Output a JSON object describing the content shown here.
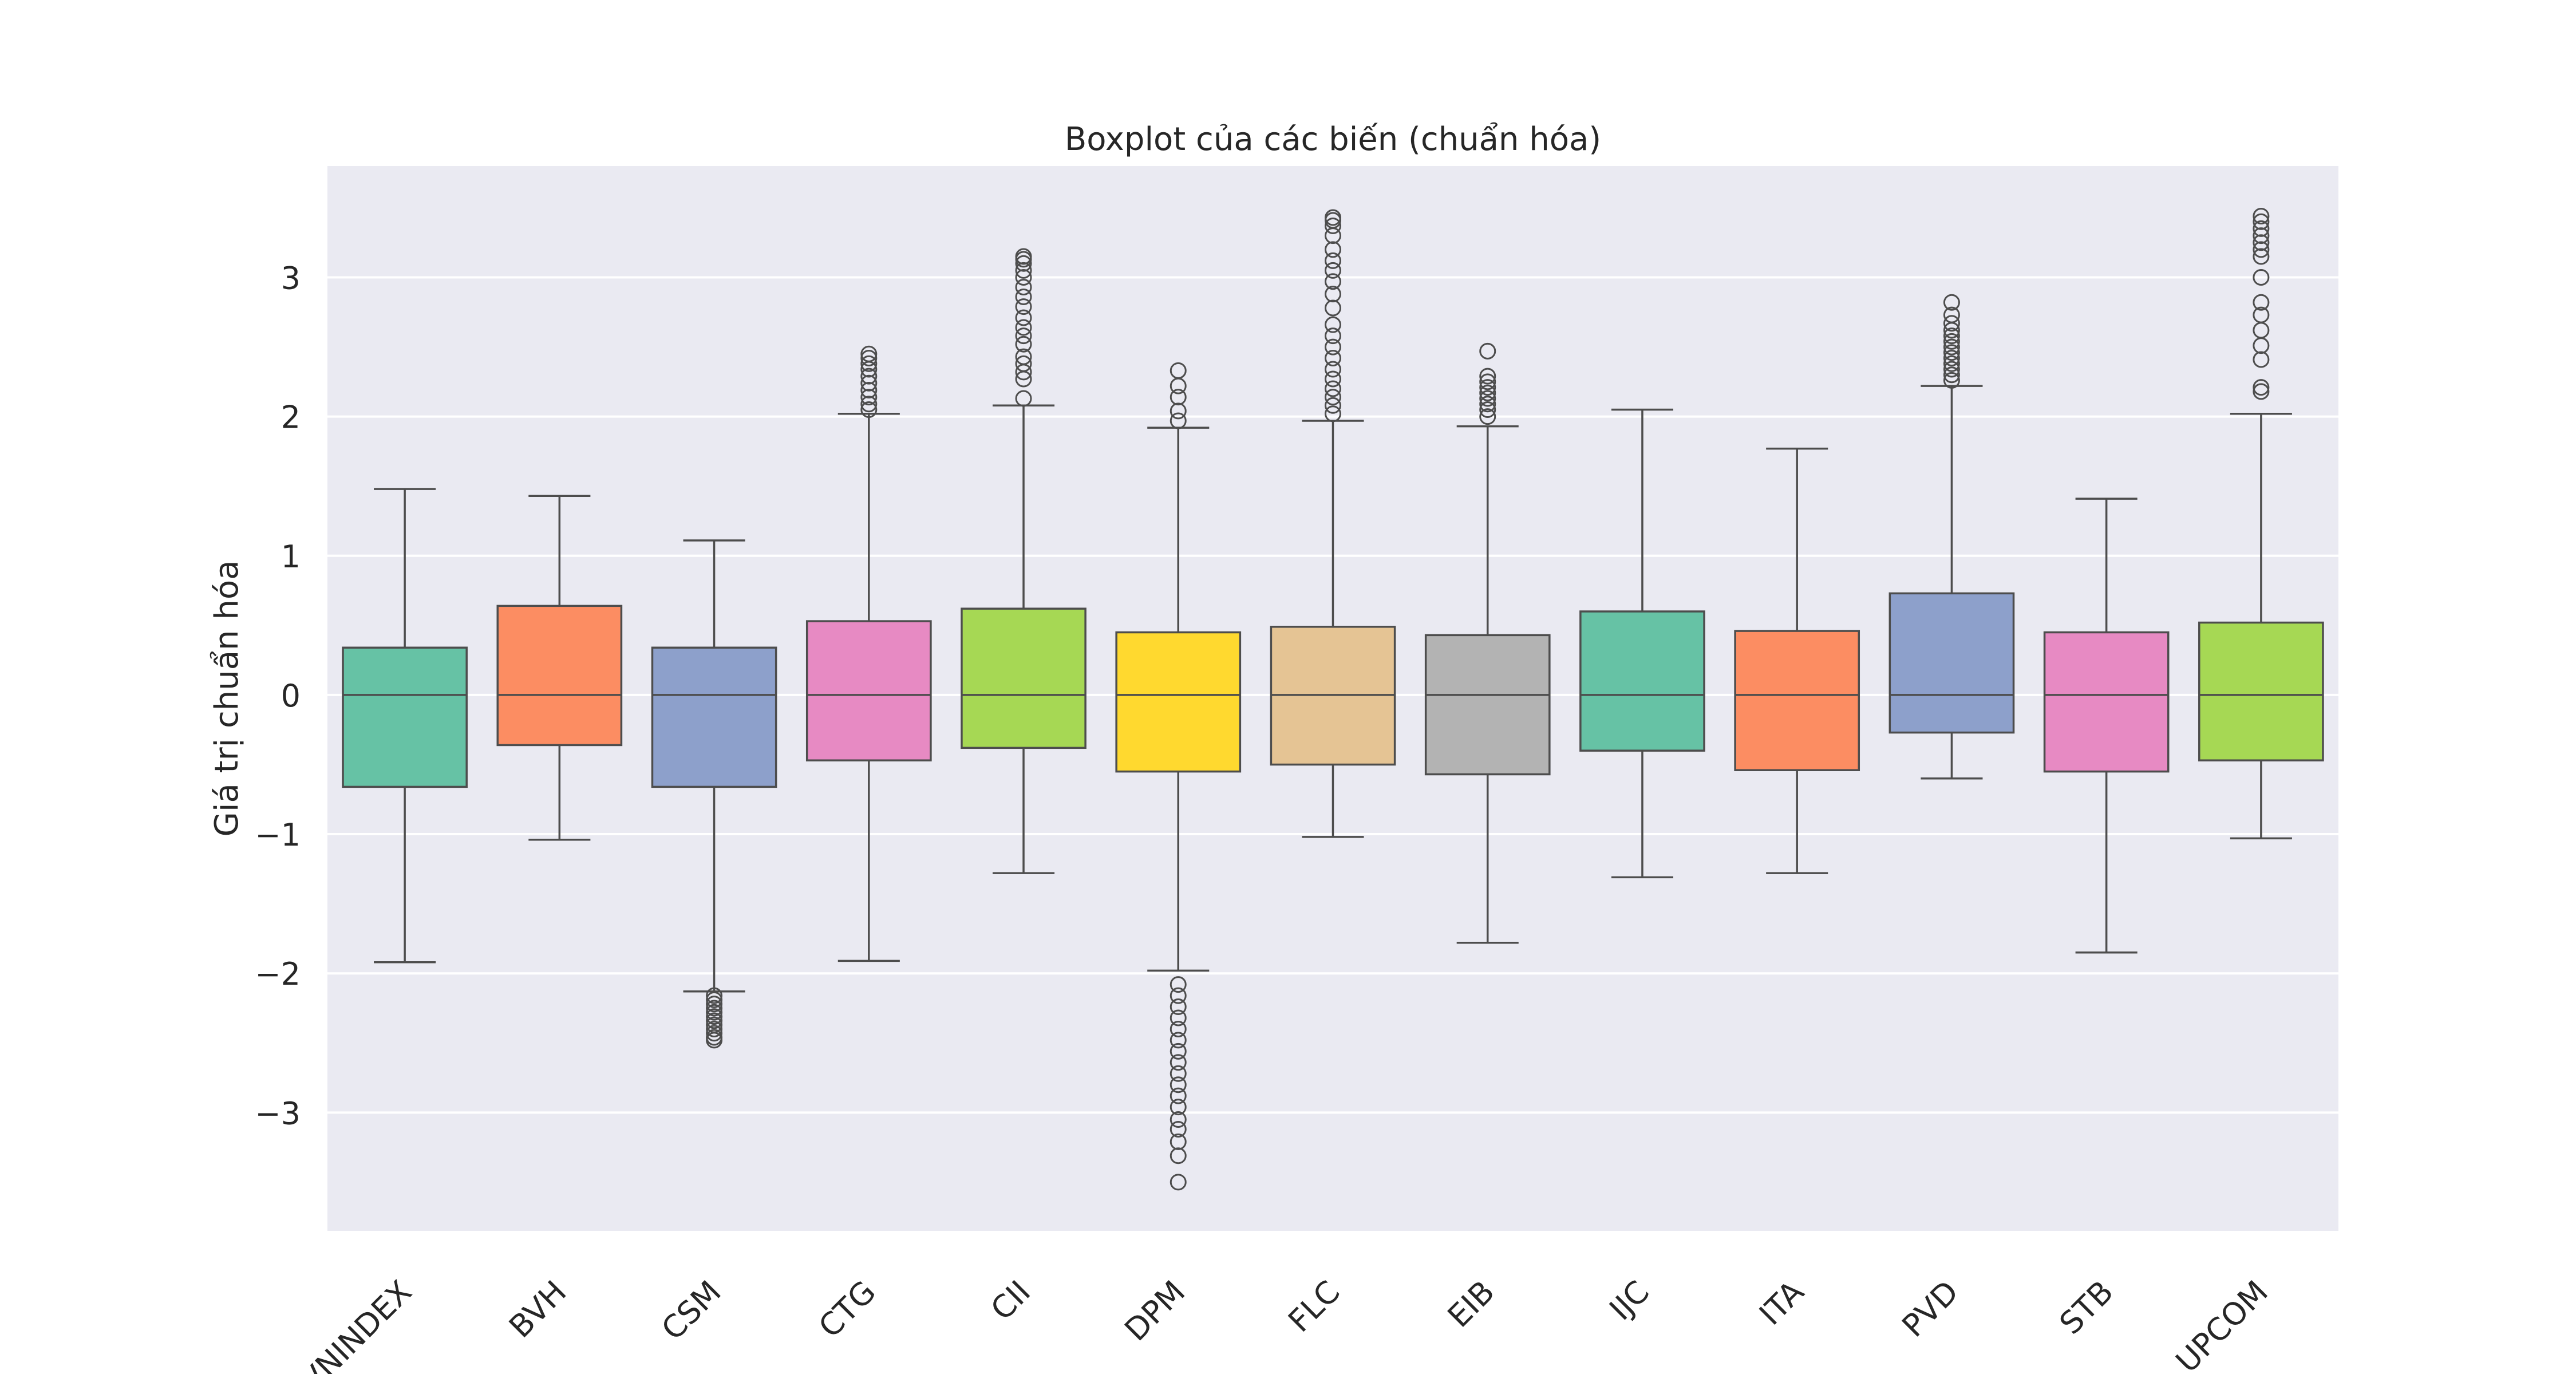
{
  "chart_data": {
    "type": "boxplot",
    "title": "Boxplot của các biến (chuẩn hóa)",
    "xlabel": "",
    "ylabel": "Giá trị chuẩn hóa",
    "ylim": [
      -3.85,
      3.8
    ],
    "yticks": [
      -3,
      -2,
      -1,
      0,
      1,
      2,
      3
    ],
    "ytick_labels": [
      "−3",
      "−2",
      "−1",
      "0",
      "1",
      "2",
      "3"
    ],
    "grid": true,
    "background": "#eaeaf2",
    "categories": [
      "VNINDEX",
      "BVH",
      "CSM",
      "CTG",
      "CII",
      "DPM",
      "FLC",
      "EIB",
      "IJC",
      "ITA",
      "PVD",
      "STB",
      "UPCOM"
    ],
    "boxes": [
      {
        "name": "VNINDEX",
        "color": "#66c2a5",
        "whisker_low": -1.92,
        "q1": -0.66,
        "median": 0.0,
        "q3": 0.34,
        "whisker_high": 1.48,
        "outliers": []
      },
      {
        "name": "BVH",
        "color": "#fc8d62",
        "whisker_low": -1.04,
        "q1": -0.36,
        "median": 0.0,
        "q3": 0.64,
        "whisker_high": 1.43,
        "outliers": []
      },
      {
        "name": "CSM",
        "color": "#8da0cb",
        "whisker_low": -2.13,
        "q1": -0.66,
        "median": 0.0,
        "q3": 0.34,
        "whisker_high": 1.11,
        "outliers": [
          -2.16,
          -2.19,
          -2.22,
          -2.25,
          -2.28,
          -2.31,
          -2.34,
          -2.37,
          -2.4,
          -2.43,
          -2.46,
          -2.48
        ]
      },
      {
        "name": "CTG",
        "color": "#e78ac3",
        "whisker_low": -1.91,
        "q1": -0.47,
        "median": 0.0,
        "q3": 0.53,
        "whisker_high": 2.02,
        "outliers": [
          2.05,
          2.09,
          2.14,
          2.19,
          2.24,
          2.29,
          2.34,
          2.38,
          2.42,
          2.45
        ]
      },
      {
        "name": "CII",
        "color": "#a6d854",
        "whisker_low": -1.28,
        "q1": -0.38,
        "median": 0.0,
        "q3": 0.62,
        "whisker_high": 2.08,
        "outliers": [
          2.13,
          2.27,
          2.32,
          2.38,
          2.43,
          2.52,
          2.58,
          2.64,
          2.71,
          2.79,
          2.86,
          2.93,
          3.0,
          3.05,
          3.1,
          3.13,
          3.15
        ]
      },
      {
        "name": "DPM",
        "color": "#ffd92f",
        "whisker_low": -1.98,
        "q1": -0.55,
        "median": 0.0,
        "q3": 0.45,
        "whisker_high": 1.92,
        "outliers": [
          1.97,
          2.04,
          2.14,
          2.22,
          2.33,
          -2.08,
          -2.16,
          -2.24,
          -2.32,
          -2.4,
          -2.48,
          -2.56,
          -2.64,
          -2.72,
          -2.8,
          -2.88,
          -2.96,
          -3.05,
          -3.12,
          -3.21,
          -3.31,
          -3.5
        ]
      },
      {
        "name": "FLC",
        "color": "#e5c494",
        "whisker_low": -1.02,
        "q1": -0.5,
        "median": 0.0,
        "q3": 0.49,
        "whisker_high": 1.97,
        "outliers": [
          2.02,
          2.08,
          2.14,
          2.2,
          2.27,
          2.34,
          2.42,
          2.5,
          2.58,
          2.66,
          2.78,
          2.88,
          2.97,
          3.05,
          3.12,
          3.2,
          3.3,
          3.37,
          3.41,
          3.43
        ]
      },
      {
        "name": "EIB",
        "color": "#b3b3b3",
        "whisker_low": -1.78,
        "q1": -0.57,
        "median": 0.0,
        "q3": 0.43,
        "whisker_high": 1.93,
        "outliers": [
          2.0,
          2.05,
          2.09,
          2.13,
          2.17,
          2.21,
          2.25,
          2.29,
          2.47
        ]
      },
      {
        "name": "IJC",
        "color": "#66c2a5",
        "whisker_low": -1.31,
        "q1": -0.4,
        "median": 0.0,
        "q3": 0.6,
        "whisker_high": 2.05,
        "outliers": []
      },
      {
        "name": "ITA",
        "color": "#fc8d62",
        "whisker_low": -1.28,
        "q1": -0.54,
        "median": 0.0,
        "q3": 0.46,
        "whisker_high": 1.77,
        "outliers": []
      },
      {
        "name": "PVD",
        "color": "#8da0cb",
        "whisker_low": -0.6,
        "q1": -0.27,
        "median": 0.0,
        "q3": 0.73,
        "whisker_high": 2.22,
        "outliers": [
          2.26,
          2.3,
          2.34,
          2.38,
          2.42,
          2.46,
          2.5,
          2.54,
          2.58,
          2.62,
          2.67,
          2.73,
          2.82
        ]
      },
      {
        "name": "STB",
        "color": "#e78ac3",
        "whisker_low": -1.85,
        "q1": -0.55,
        "median": 0.0,
        "q3": 0.45,
        "whisker_high": 1.41,
        "outliers": []
      },
      {
        "name": "UPCOM",
        "color": "#a6d854",
        "whisker_low": -1.03,
        "q1": -0.47,
        "median": 0.0,
        "q3": 0.52,
        "whisker_high": 2.02,
        "outliers": [
          2.18,
          2.21,
          2.41,
          2.51,
          2.62,
          2.73,
          2.82,
          3.0,
          3.15,
          3.2,
          3.25,
          3.3,
          3.35,
          3.4,
          3.44
        ]
      }
    ]
  }
}
